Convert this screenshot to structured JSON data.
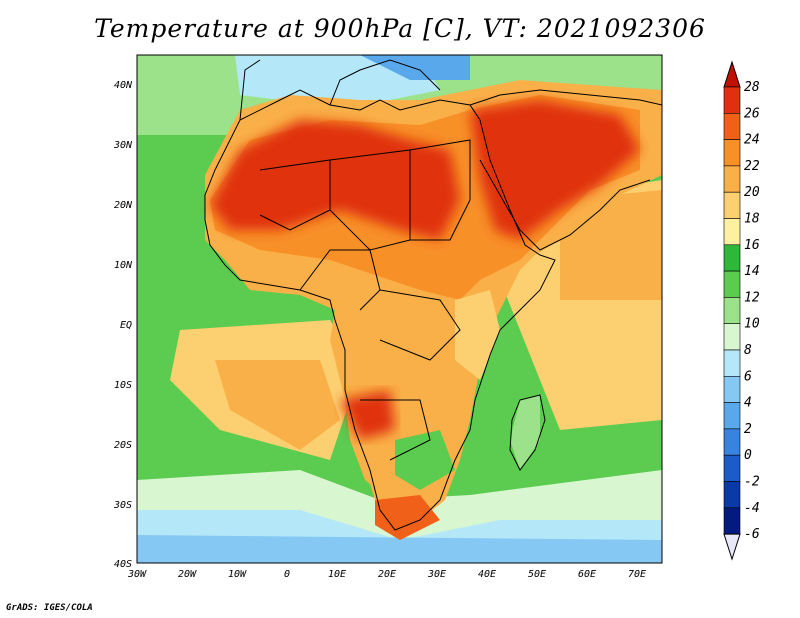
{
  "title": "Temperature at 900hPa [C], VT: 2021092306",
  "credit": "GrADS: IGES/COLA",
  "map": {
    "lat_labels": [
      "40N",
      "30N",
      "20N",
      "10N",
      "EQ",
      "10S",
      "20S",
      "30S",
      "40S"
    ],
    "lon_labels": [
      "30W",
      "20W",
      "10W",
      "0",
      "10E",
      "20E",
      "30E",
      "40E",
      "50E",
      "60E",
      "70E"
    ]
  },
  "colorbar": {
    "labels": [
      "28",
      "26",
      "24",
      "22",
      "20",
      "18",
      "16",
      "14",
      "12",
      "10",
      "8",
      "6",
      "4",
      "2",
      "0",
      "-2",
      "-4",
      "-6"
    ],
    "colors": [
      "#c01000",
      "#e03010",
      "#f06018",
      "#f89028",
      "#fab048",
      "#fcd070",
      "#fef0a0",
      "#2eb83a",
      "#5ccc50",
      "#9be28a",
      "#d8f6d0",
      "#b4e8f8",
      "#86c8f4",
      "#5aa8ec",
      "#3882e0",
      "#1c5cc8",
      "#0a3aa8",
      "#051a80",
      "#e8e8f8"
    ]
  },
  "fields": {
    "sea": "#5ccc50",
    "cool_sea": "#86c8f4",
    "land": "#f89028",
    "hot": "#e03010",
    "warm_arabia": "#f06018"
  }
}
